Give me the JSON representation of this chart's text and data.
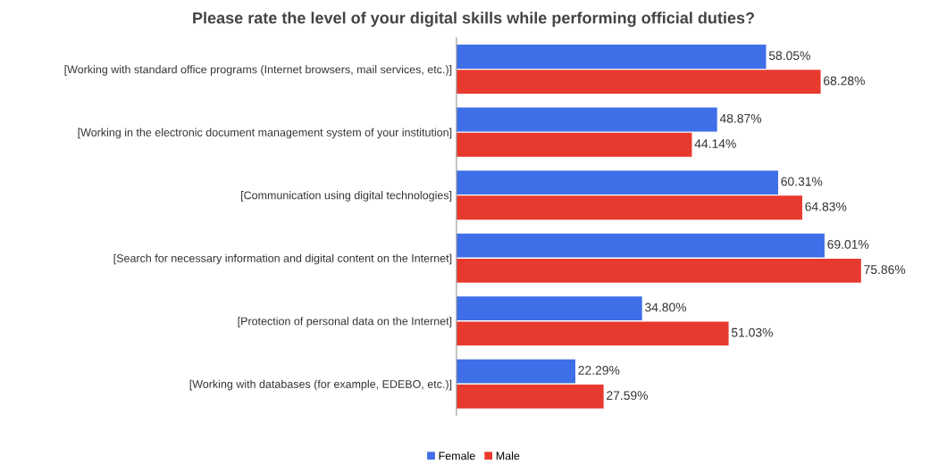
{
  "chart_data": {
    "type": "bar",
    "orientation": "horizontal",
    "title": "Please rate the level of your digital skills while performing official duties?",
    "categories": [
      "[Working with standard office programs (Internet browsers, mail services, etc.)]",
      "[Working in the electronic document management system of your institution]",
      "[Communication using digital technologies]",
      "[Search for necessary information and digital content on the Internet]",
      "[Protection of personal data on the Internet]",
      "[Working with databases (for example, EDEBO, etc.)]"
    ],
    "series": [
      {
        "name": "Female",
        "color": "#3f6fe8",
        "values": [
          58.05,
          48.87,
          60.31,
          69.01,
          34.8,
          22.29
        ],
        "value_labels": [
          "58.05%",
          "48.87%",
          "60.31%",
          "69.01%",
          "34.80%",
          "22.29%"
        ]
      },
      {
        "name": "Male",
        "color": "#e8392f",
        "values": [
          68.28,
          44.14,
          64.83,
          75.86,
          51.03,
          27.59
        ],
        "value_labels": [
          "68.28%",
          "44.14%",
          "64.83%",
          "75.86%",
          "51.03%",
          "27.59%"
        ]
      }
    ],
    "legend": "bottom"
  }
}
